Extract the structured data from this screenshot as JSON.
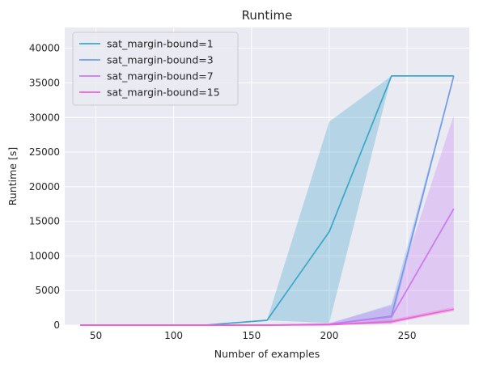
{
  "chart_data": {
    "type": "line",
    "title": "Runtime",
    "xlabel": "Number of examples",
    "ylabel": "Runtime [s]",
    "xlim": [
      30,
      290
    ],
    "ylim": [
      0,
      43000
    ],
    "xticks": [
      50,
      100,
      150,
      200,
      250
    ],
    "yticks": [
      0,
      5000,
      10000,
      15000,
      20000,
      25000,
      30000,
      35000,
      40000
    ],
    "grid": true,
    "legend_position": "top-left",
    "x": [
      40,
      80,
      120,
      160,
      200,
      240,
      280
    ],
    "series": [
      {
        "name": "sat_margin-bound=1",
        "color": "#3aa7c9",
        "values": [
          0,
          0,
          0,
          700,
          13500,
          36000,
          36000
        ],
        "band_low": [
          0,
          0,
          0,
          700,
          300,
          36000,
          36000
        ],
        "band_high": [
          0,
          0,
          0,
          700,
          29400,
          36000,
          36000
        ]
      },
      {
        "name": "sat_margin-bound=3",
        "color": "#6f9be8",
        "values": [
          0,
          0,
          0,
          0,
          100,
          1300,
          36000
        ],
        "band_low": [
          0,
          0,
          0,
          0,
          0,
          200,
          36000
        ],
        "band_high": [
          0,
          0,
          0,
          0,
          200,
          3000,
          36000
        ]
      },
      {
        "name": "sat_margin-bound=7",
        "color": "#c87af0",
        "values": [
          0,
          0,
          0,
          0,
          150,
          1200,
          16800
        ],
        "band_low": [
          0,
          0,
          0,
          0,
          0,
          200,
          2500
        ],
        "band_high": [
          0,
          0,
          0,
          0,
          300,
          2800,
          30300
        ]
      },
      {
        "name": "sat_margin-bound=15",
        "color": "#f060d0",
        "values": [
          0,
          0,
          0,
          0,
          50,
          500,
          2300
        ],
        "band_low": [
          0,
          0,
          0,
          0,
          0,
          300,
          2000
        ],
        "band_high": [
          0,
          0,
          0,
          0,
          100,
          800,
          2600
        ]
      }
    ]
  }
}
